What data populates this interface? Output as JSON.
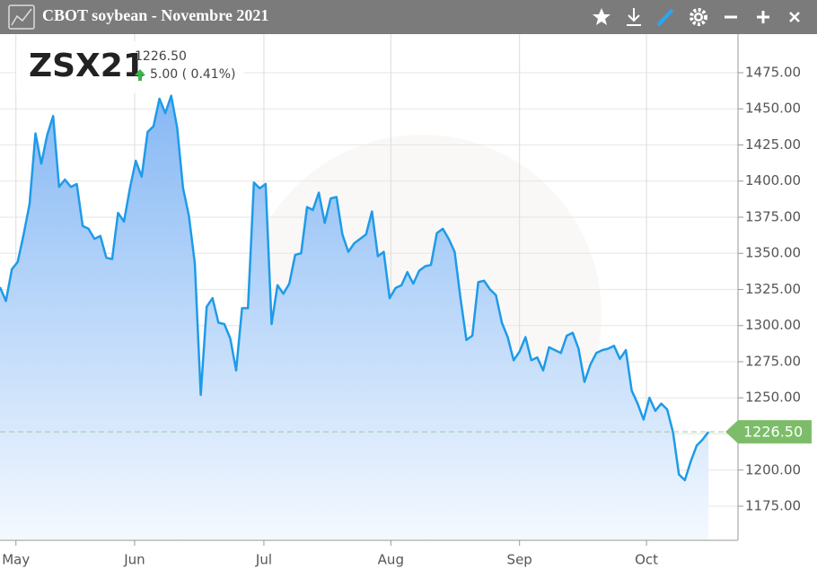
{
  "window": {
    "title": "CBOT soybean - Novembre 2021"
  },
  "header": {
    "symbol": "ZSX21",
    "change": "5.00 ( 0.41%)"
  },
  "chart_data": {
    "type": "area",
    "values": [
      1326.6,
      1317,
      1339,
      1344,
      1363,
      1384,
      1433,
      1412,
      1432,
      1445,
      1396,
      1401,
      1396,
      1398,
      1369,
      1367,
      1360,
      1362,
      1347,
      1346,
      1378,
      1372,
      1395,
      1414,
      1403,
      1434,
      1438,
      1457,
      1447,
      1459,
      1437,
      1395,
      1376,
      1343,
      1252,
      1313,
      1319,
      1302,
      1301,
      1291,
      1269,
      1312,
      1312,
      1399,
      1395,
      1398,
      1301,
      1328,
      1322,
      1329,
      1349,
      1350,
      1382,
      1380,
      1392,
      1371,
      1388,
      1389,
      1363,
      1351,
      1357,
      1360,
      1363,
      1379,
      1348,
      1351,
      1319,
      1326,
      1328,
      1337,
      1329,
      1338,
      1341,
      1342,
      1364,
      1367,
      1360,
      1351,
      1319,
      1290,
      1293,
      1330,
      1331,
      1325,
      1321,
      1302,
      1292,
      1276,
      1282,
      1292,
      1276,
      1278,
      1269,
      1285,
      1283,
      1281,
      1293,
      1295,
      1284,
      1261,
      1273,
      1281,
      1283,
      1284,
      1286,
      1277,
      1283,
      1255,
      1246,
      1235,
      1250,
      1241,
      1246,
      1242,
      1226,
      1197,
      1193,
      1206,
      1217,
      1221,
      1226.5
    ],
    "color": "#1e9be8",
    "xlim": [
      0,
      125
    ],
    "xticks": [
      {
        "value": 2.7,
        "label": "May"
      },
      {
        "value": 22.8,
        "label": "Jun"
      },
      {
        "value": 44.7,
        "label": "Jul"
      },
      {
        "value": 66.2,
        "label": "Aug"
      },
      {
        "value": 88,
        "label": "Sep"
      },
      {
        "value": 109.5,
        "label": "Oct"
      }
    ],
    "ylim": [
      1151.4,
      1501.7
    ],
    "yticks": [
      {
        "value": 1175,
        "label": "1175.00"
      },
      {
        "value": 1200,
        "label": "1200.00"
      },
      {
        "value": 1225,
        "label": "1225.00"
      },
      {
        "value": 1250,
        "label": "1250.00"
      },
      {
        "value": 1275,
        "label": "1275.00"
      },
      {
        "value": 1300,
        "label": "1300.00"
      },
      {
        "value": 1325,
        "label": "1325.00"
      },
      {
        "value": 1350,
        "label": "1350.00"
      },
      {
        "value": 1375,
        "label": "1375.00"
      },
      {
        "value": 1400,
        "label": "1400.00"
      },
      {
        "value": 1425,
        "label": "1425.00"
      },
      {
        "value": 1450,
        "label": "1450.00"
      },
      {
        "value": 1475,
        "label": "1475.00"
      }
    ],
    "grid": true,
    "last": {
      "value": 1226.5,
      "label": "1226.50"
    }
  }
}
